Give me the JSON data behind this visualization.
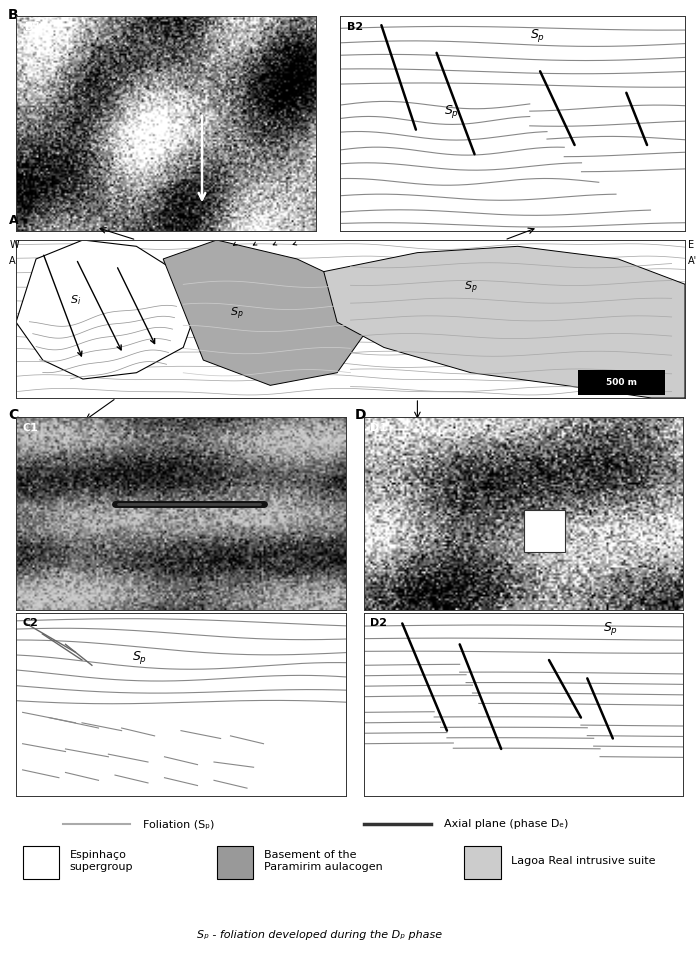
{
  "fig_width": 6.99,
  "fig_height": 9.63,
  "bg_color": "#ffffff",
  "legend_foliation": "Foliation (Sₚ)",
  "legend_axial": "Axial plane (phase Dₑ)",
  "legend_espinhaco": "Espinhaço\nsupergroup",
  "legend_basement": "Basement of the\nParamirim aulacogen",
  "legend_lagoa": "Lagoa Real intrusive suite",
  "legend_bottom": "Sₚ - foliation developed during the Dₚ phase",
  "foliation_color": "#aaaaaa",
  "axial_color": "#444444",
  "line_color": "#555555"
}
